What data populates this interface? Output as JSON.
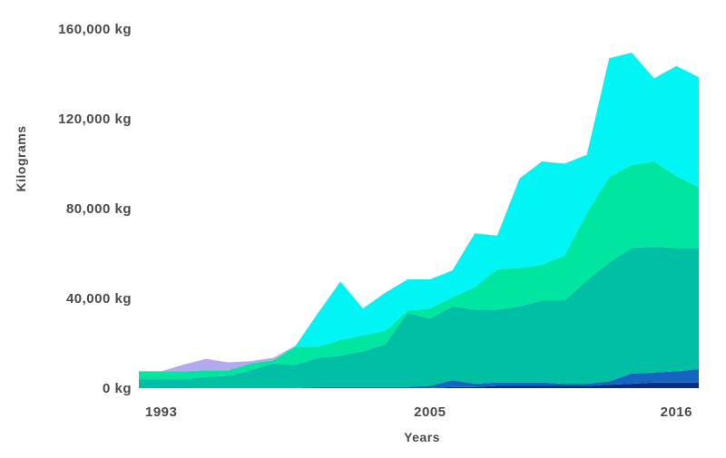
{
  "chart_data": {
    "type": "area",
    "stacked": true,
    "title": "",
    "xlabel": "Years",
    "ylabel": "Kilograms",
    "xlim": [
      1993,
      2017
    ],
    "ylim": [
      0,
      160000
    ],
    "x_ticks": [
      {
        "value": 1993,
        "label": "1993"
      },
      {
        "value": 2005,
        "label": "2005"
      },
      {
        "value": 2016,
        "label": "2016"
      }
    ],
    "y_ticks": [
      {
        "value": 0,
        "label": "0 kg"
      },
      {
        "value": 40000,
        "label": "40,000 kg"
      },
      {
        "value": 80000,
        "label": "80,000 kg"
      },
      {
        "value": 120000,
        "label": "120,000 kg"
      },
      {
        "value": 160000,
        "label": "160,000 kg"
      }
    ],
    "grid": false,
    "legend": "none",
    "x": [
      1992,
      1993,
      1994,
      1995,
      1996,
      1997,
      1998,
      1999,
      2000,
      2001,
      2002,
      2003,
      2004,
      2005,
      2006,
      2007,
      2008,
      2009,
      2010,
      2011,
      2012,
      2013,
      2014,
      2015,
      2016,
      2017
    ],
    "series": [
      {
        "color": "#0a2f80",
        "values": [
          0,
          0,
          0,
          0,
          0,
          0,
          0,
          0,
          0,
          0,
          0,
          0,
          0,
          0,
          500,
          500,
          1000,
          1000,
          1000,
          1000,
          1000,
          1500,
          2000,
          2500,
          2500,
          2500
        ]
      },
      {
        "color": "#1565c0",
        "values": [
          0,
          0,
          0,
          0,
          0,
          0,
          0,
          0,
          500,
          500,
          500,
          500,
          500,
          1000,
          3000,
          1500,
          1500,
          1500,
          1500,
          1000,
          1000,
          1500,
          4500,
          4500,
          5000,
          6000
        ]
      },
      {
        "color": "#00bfa5",
        "values": [
          4000,
          4000,
          4000,
          5000,
          5500,
          8000,
          11000,
          10500,
          13000,
          14000,
          16000,
          19000,
          33000,
          30000,
          33000,
          33000,
          32500,
          34000,
          36500,
          37000,
          46000,
          53000,
          56000,
          56000,
          55000,
          54000
        ]
      },
      {
        "color": "#00e6a0",
        "values": [
          3500,
          3500,
          3500,
          3000,
          2500,
          3000,
          1500,
          8000,
          5000,
          7000,
          7000,
          6000,
          1000,
          4500,
          4000,
          10000,
          18000,
          17000,
          16000,
          20000,
          30000,
          38000,
          37000,
          38000,
          32000,
          27000
        ]
      },
      {
        "color": "#00f5f5",
        "values": [
          0,
          0,
          0,
          0,
          0,
          0,
          0,
          500,
          15000,
          26000,
          12000,
          17000,
          14000,
          13000,
          12000,
          24000,
          15000,
          40000,
          46000,
          41000,
          26000,
          53000,
          50000,
          37000,
          49000,
          49000
        ]
      },
      {
        "color": "#b3a9f0",
        "values": [
          0,
          0,
          3000,
          5000,
          3500,
          1000,
          1000,
          0,
          0,
          0,
          0,
          0,
          0,
          0,
          0,
          0,
          0,
          0,
          0,
          0,
          0,
          0,
          0,
          0,
          0,
          0
        ]
      }
    ]
  }
}
